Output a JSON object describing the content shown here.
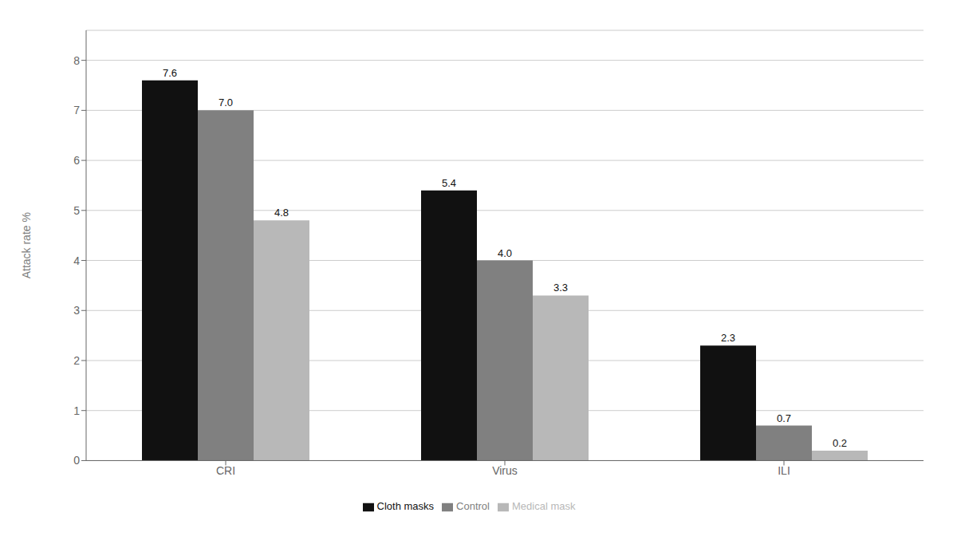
{
  "chart_data": {
    "type": "bar",
    "categories": [
      "CRI",
      "Virus",
      "ILI"
    ],
    "series": [
      {
        "name": "Cloth masks",
        "color": "#111111",
        "values": [
          7.6,
          5.4,
          2.3
        ]
      },
      {
        "name": "Control",
        "color": "#808080",
        "values": [
          7.0,
          4.0,
          0.7
        ],
        "value_labels": [
          "7.0",
          "4.0",
          "0.7"
        ]
      },
      {
        "name": "Medical mask",
        "color": "#b8b8b8",
        "values": [
          4.8,
          3.3,
          0.2
        ]
      }
    ],
    "ylabel": "Attack rate %",
    "ylim": [
      0,
      8.6
    ],
    "yticks": [
      0,
      1,
      2,
      3,
      4,
      5,
      6,
      7,
      8
    ],
    "grid": true,
    "legend": "bottom",
    "data_labels": true
  }
}
